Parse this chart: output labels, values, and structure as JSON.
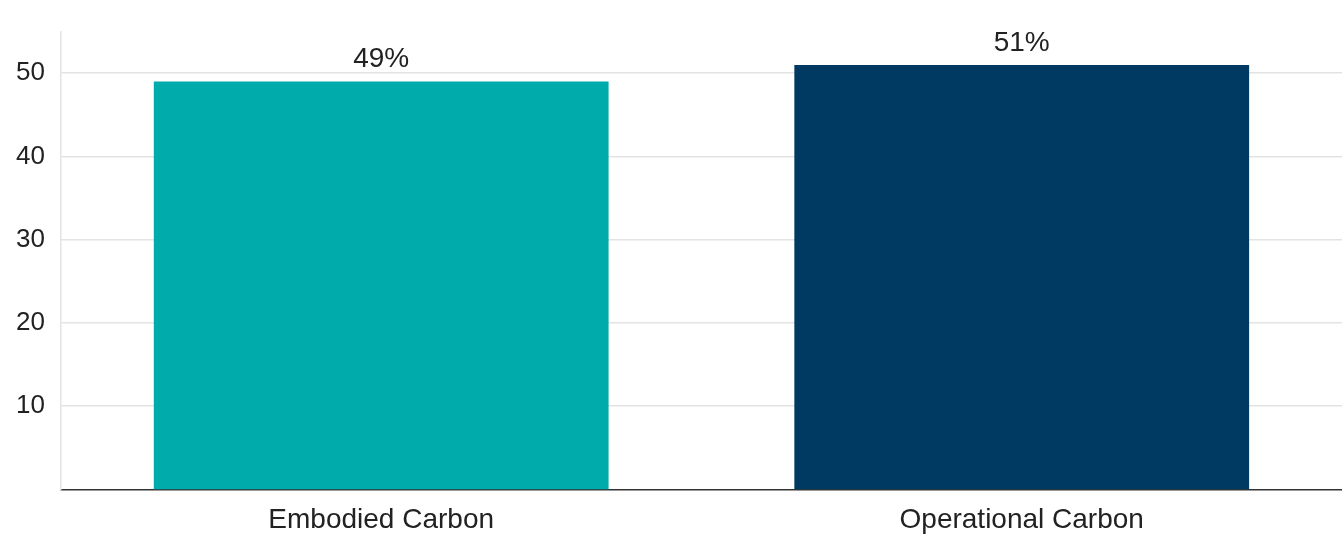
{
  "chart_data": {
    "type": "bar",
    "categories": [
      "Embodied Carbon",
      "Operational Carbon"
    ],
    "values": [
      49,
      51
    ],
    "colors": [
      "#00abab",
      "#003a63"
    ],
    "value_labels": [
      "49%",
      "51%"
    ],
    "ylim": [
      0,
      55
    ],
    "yticks": [
      10,
      20,
      30,
      40,
      50
    ],
    "grid": "y",
    "legend": false
  }
}
